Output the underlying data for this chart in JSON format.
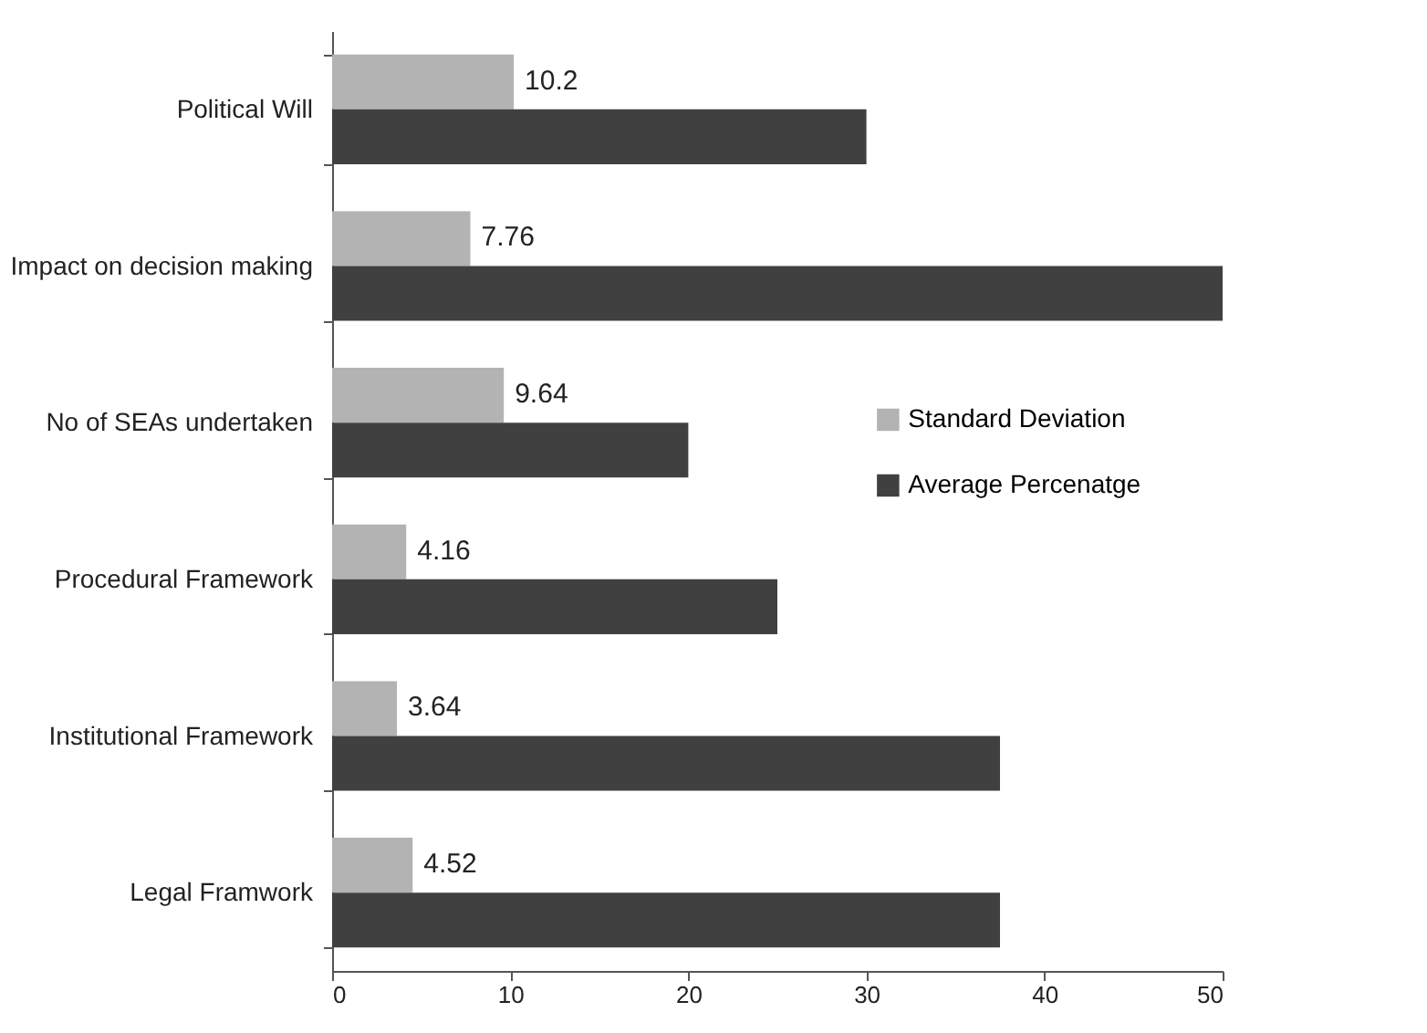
{
  "chart_data": {
    "type": "bar",
    "orientation": "horizontal",
    "categories": [
      "Political Will",
      "Impact on decision making",
      "No of SEAs undertaken",
      "Procedural Framework",
      "Institutional Framework",
      "Legal Framwork"
    ],
    "series": [
      {
        "name": "Standard Deviation",
        "color": "#b3b3b3",
        "values": [
          10.2,
          7.76,
          9.64,
          4.16,
          3.64,
          4.52
        ],
        "value_labels": [
          "10.2",
          "7.76",
          "9.64",
          "4.16",
          "3.64",
          "4.52"
        ]
      },
      {
        "name": "Average Percenatge",
        "color": "#404040",
        "values": [
          30,
          50,
          20,
          25,
          37.5,
          37.5
        ]
      }
    ],
    "xlim": [
      0,
      50
    ],
    "xticks": [
      0,
      10,
      20,
      30,
      40,
      50
    ],
    "grid": false,
    "legend": "right"
  }
}
